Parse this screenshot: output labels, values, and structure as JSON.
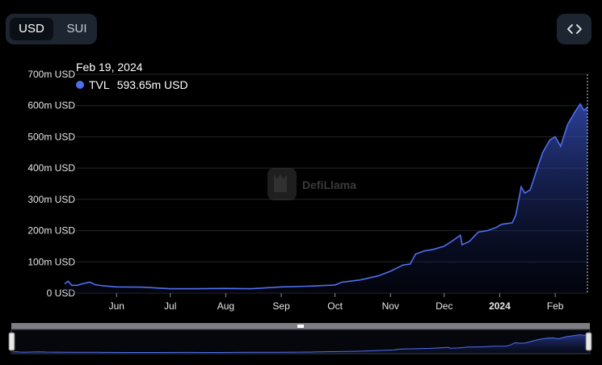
{
  "toggle": {
    "options": [
      "USD",
      "SUI"
    ],
    "selected": "USD"
  },
  "embed": {
    "icon": "code-brackets-icon"
  },
  "tooltip": {
    "date": "Feb 19, 2024",
    "series": "TVL",
    "value": "593.65m USD"
  },
  "watermark": "DefiLlama",
  "colors": {
    "line": "#4f6ff0",
    "background": "#000000",
    "panel": "#1d2531"
  },
  "chart_data": {
    "type": "area",
    "yunit": "m USD",
    "ylim": [
      0,
      700
    ],
    "yticks": [
      0,
      100,
      200,
      300,
      400,
      500,
      600,
      700
    ],
    "ytick_labels": [
      "0 USD",
      "100m USD",
      "200m USD",
      "300m USD",
      "400m USD",
      "500m USD",
      "600m USD",
      "700m USD"
    ],
    "xlim": [
      "2023-05-03",
      "2024-02-19"
    ],
    "xticks": [
      {
        "date": "2023-06-01",
        "label": "Jun"
      },
      {
        "date": "2023-07-01",
        "label": "Jul"
      },
      {
        "date": "2023-08-01",
        "label": "Aug"
      },
      {
        "date": "2023-09-01",
        "label": "Sep"
      },
      {
        "date": "2023-10-01",
        "label": "Oct"
      },
      {
        "date": "2023-11-01",
        "label": "Nov"
      },
      {
        "date": "2023-12-01",
        "label": "Dec"
      },
      {
        "date": "2024-01-01",
        "label": "2024"
      },
      {
        "date": "2024-02-01",
        "label": "Feb"
      }
    ],
    "series": [
      {
        "name": "TVL",
        "points": [
          [
            "2023-05-03",
            30
          ],
          [
            "2023-05-05",
            38
          ],
          [
            "2023-05-07",
            25
          ],
          [
            "2023-05-10",
            25
          ],
          [
            "2023-05-13",
            30
          ],
          [
            "2023-05-17",
            35
          ],
          [
            "2023-05-20",
            27
          ],
          [
            "2023-05-25",
            23
          ],
          [
            "2023-06-01",
            20
          ],
          [
            "2023-06-15",
            19
          ],
          [
            "2023-07-01",
            14
          ],
          [
            "2023-07-15",
            14
          ],
          [
            "2023-08-01",
            15
          ],
          [
            "2023-08-15",
            14
          ],
          [
            "2023-09-01",
            20
          ],
          [
            "2023-09-15",
            22
          ],
          [
            "2023-10-01",
            26
          ],
          [
            "2023-10-05",
            35
          ],
          [
            "2023-10-15",
            42
          ],
          [
            "2023-10-25",
            55
          ],
          [
            "2023-11-01",
            70
          ],
          [
            "2023-11-08",
            90
          ],
          [
            "2023-11-12",
            93
          ],
          [
            "2023-11-15",
            125
          ],
          [
            "2023-11-20",
            135
          ],
          [
            "2023-11-25",
            140
          ],
          [
            "2023-12-01",
            150
          ],
          [
            "2023-12-05",
            165
          ],
          [
            "2023-12-10",
            185
          ],
          [
            "2023-12-11",
            155
          ],
          [
            "2023-12-15",
            165
          ],
          [
            "2023-12-20",
            195
          ],
          [
            "2023-12-25",
            200
          ],
          [
            "2023-12-30",
            210
          ],
          [
            "2024-01-02",
            220
          ],
          [
            "2024-01-08",
            225
          ],
          [
            "2024-01-10",
            250
          ],
          [
            "2024-01-13",
            340
          ],
          [
            "2024-01-15",
            320
          ],
          [
            "2024-01-18",
            330
          ],
          [
            "2024-01-22",
            400
          ],
          [
            "2024-01-25",
            450
          ],
          [
            "2024-01-29",
            490
          ],
          [
            "2024-02-01",
            500
          ],
          [
            "2024-02-04",
            470
          ],
          [
            "2024-02-08",
            540
          ],
          [
            "2024-02-12",
            580
          ],
          [
            "2024-02-15",
            605
          ],
          [
            "2024-02-17",
            585
          ],
          [
            "2024-02-19",
            593.65
          ]
        ]
      }
    ]
  }
}
